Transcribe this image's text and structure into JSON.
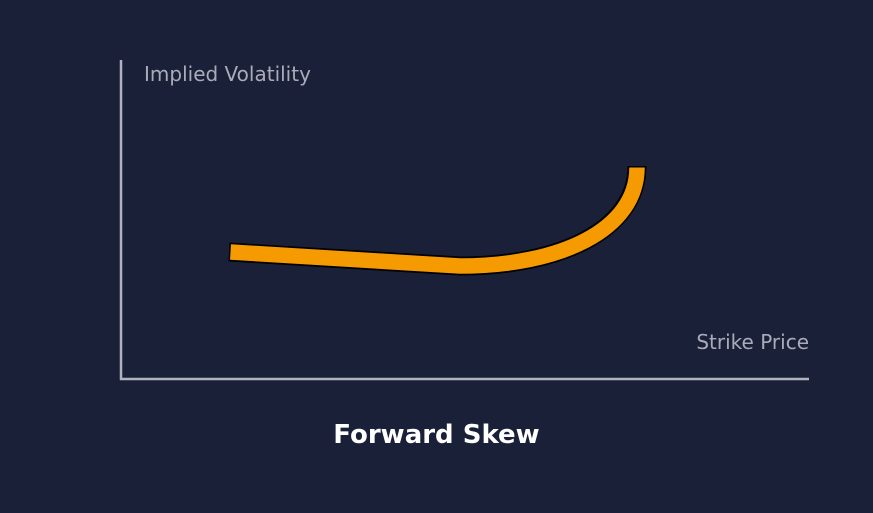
{
  "diagram": {
    "title": "Forward Skew",
    "y_axis_label": "Implied Volatility",
    "x_axis_label": "Strike Price",
    "curve_color": "#f59a00",
    "axis_color": "#b0b3bd",
    "background": "#1b2039"
  }
}
